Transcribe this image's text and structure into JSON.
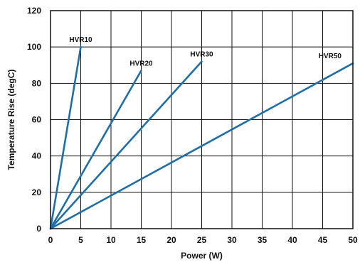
{
  "chart_data": {
    "type": "line",
    "xlabel": "Power (W)",
    "ylabel": "Temperature Rise (degC)",
    "xlim": [
      0,
      50
    ],
    "ylim": [
      0,
      120
    ],
    "xticks": [
      "0",
      "5",
      "10",
      "15",
      "20",
      "25",
      "30",
      "35",
      "40",
      "45",
      "50"
    ],
    "yticks": [
      "0",
      "20",
      "40",
      "60",
      "80",
      "100",
      "120"
    ],
    "grid": true,
    "line_color": "#1f6fa6",
    "series": [
      {
        "name": "HVR10",
        "x": [
          0,
          5
        ],
        "y": [
          0,
          100
        ]
      },
      {
        "name": "HVR20",
        "x": [
          0,
          15
        ],
        "y": [
          0,
          87
        ]
      },
      {
        "name": "HVR30",
        "x": [
          0,
          25
        ],
        "y": [
          0,
          92
        ]
      },
      {
        "name": "HVR50",
        "x": [
          0,
          50
        ],
        "y": [
          0,
          91
        ]
      }
    ]
  }
}
